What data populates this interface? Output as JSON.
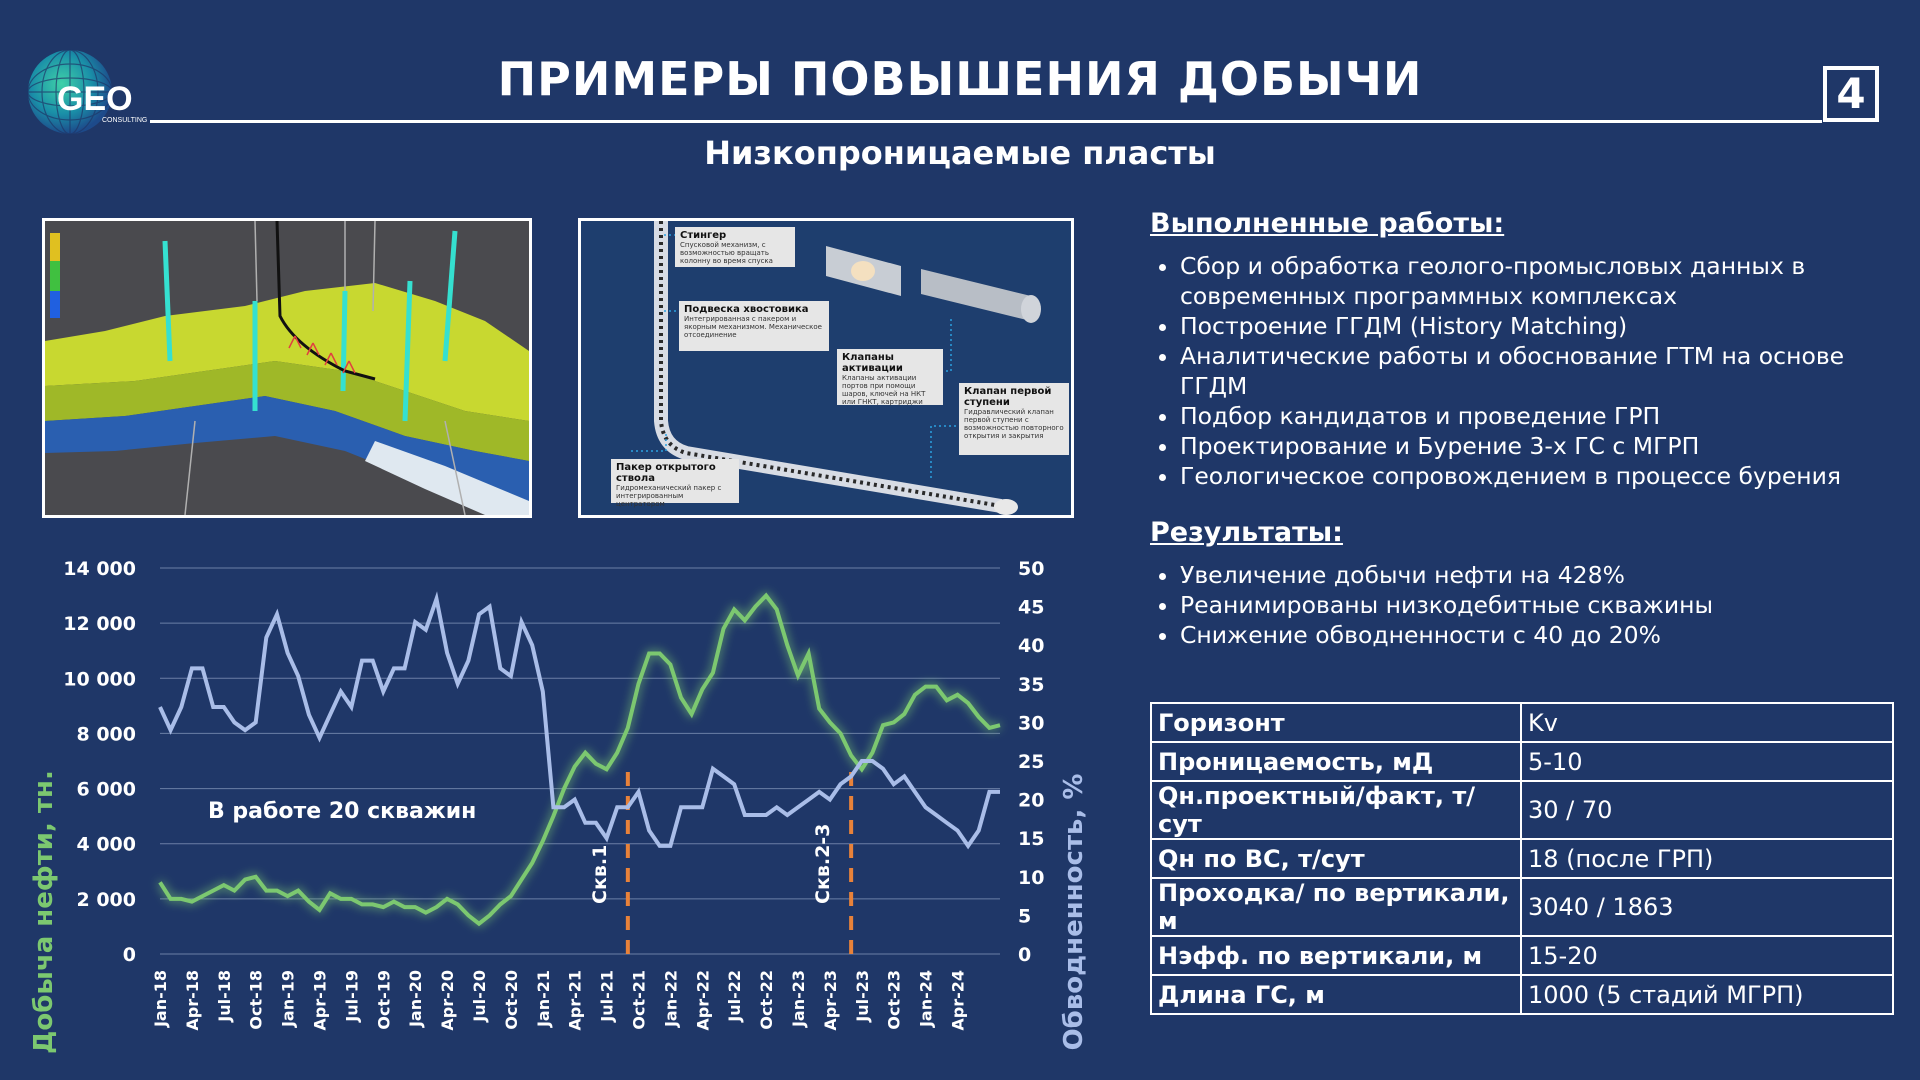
{
  "logo": {
    "text": "GEO",
    "subtext": "CONSULTING"
  },
  "header": {
    "title": "ПРИМЕРЫ ПОВЫШЕНИЯ ДОБЫЧИ",
    "page_number": "4",
    "subtitle": "Низкопроницаемые пласты"
  },
  "tool_diagram": {
    "callouts": [
      {
        "title": "Стингер",
        "text": "Спусковой механизм, с возможностью вращать колонну во время спуска"
      },
      {
        "title": "Подвеска хвостовика",
        "text": "Интегрированная с пакером и якорным механизмом. Механическое отсоединение"
      },
      {
        "title": "Клапаны активации",
        "text": "Клапаны активации портов при помощи шаров, ключей на НКТ или ГНКТ, картриджи"
      },
      {
        "title": "Клапан первой ступени",
        "text": "Гидравлический клапан первой ступени с возможностью повторного открытия и закрытия"
      },
      {
        "title": "Пакер открытого ствола",
        "text": "Гидромеханический пакер с интегрированным центратором"
      }
    ]
  },
  "works": {
    "heading": "Выполненные работы:",
    "items": [
      "Сбор и обработка геолого-промысловых данных в современных программных комплексах",
      "Построение ГГДМ (History Matching)",
      "Аналитические работы и обоснование ГТМ на основе ГГДМ",
      "Подбор кандидатов и проведение ГРП",
      "Проектирование и Бурение 3-х ГС с МГРП",
      "Геологическое сопровождением в процессе бурения"
    ]
  },
  "results": {
    "heading": "Результаты:",
    "items": [
      "Увеличение добычи нефти на 428%",
      "Реанимированы низкодебитные скважины",
      "Снижение обводненности с 40 до 20%"
    ]
  },
  "params": [
    {
      "key": "Горизонт",
      "value": "Kv"
    },
    {
      "key": "Проницаемость, мД",
      "value": "5-10"
    },
    {
      "key": "Qн.проектный/факт, т/сут",
      "value": "30 / 70"
    },
    {
      "key": "Qн по ВС, т/сут",
      "value": "18 (после ГРП)"
    },
    {
      "key": "Проходка/ по вертикали, м",
      "value": "3040 / 1863"
    },
    {
      "key": "Нэфф. по вертикали, м",
      "value": "15-20"
    },
    {
      "key": "Длина ГС, м",
      "value": "1000 (5 стадий МГРП)"
    }
  ],
  "chart_data": {
    "type": "line",
    "ylabel": "Добыча нефти, тн.",
    "y2label": "Обводненность, %",
    "ylim": [
      0,
      14000
    ],
    "y2lim": [
      0,
      50
    ],
    "yticks": [
      "0",
      "2 000",
      "4 000",
      "6 000",
      "8 000",
      "10 000",
      "12 000",
      "14 000"
    ],
    "y2ticks": [
      "0",
      "5",
      "10",
      "15",
      "20",
      "25",
      "30",
      "35",
      "40",
      "45",
      "50"
    ],
    "grid": true,
    "x_tick_labels": [
      "Jan-18",
      "Apr-18",
      "Jul-18",
      "Oct-18",
      "Jan-19",
      "Apr-19",
      "Jul-19",
      "Oct-19",
      "Jan-20",
      "Apr-20",
      "Jul-20",
      "Oct-20",
      "Jan-21",
      "Apr-21",
      "Jul-21",
      "Oct-21",
      "Jan-22",
      "Apr-22",
      "Jul-22",
      "Oct-22",
      "Jan-23",
      "Apr-23",
      "Jul-23",
      "Oct-23",
      "Jan-24",
      "Apr-24"
    ],
    "annotation": "В работе 20 скважин",
    "markers": [
      {
        "label": "Скв.1",
        "month": "Sep-21"
      },
      {
        "label": "Скв.2-3",
        "month": "Jun-23"
      }
    ],
    "series": [
      {
        "axis": "left",
        "color": "#7cc870",
        "values": [
          2600,
          2000,
          2000,
          1900,
          2100,
          2300,
          2500,
          2300,
          2700,
          2800,
          2300,
          2300,
          2100,
          2300,
          1900,
          1600,
          2200,
          2000,
          2000,
          1800,
          1800,
          1700,
          1900,
          1700,
          1700,
          1500,
          1700,
          2000,
          1800,
          1400,
          1100,
          1400,
          1800,
          2100,
          2700,
          3300,
          4100,
          5000,
          6000,
          6800,
          7300,
          6900,
          6700,
          7300,
          8200,
          9800,
          10900,
          10900,
          10500,
          9300,
          8700,
          9600,
          10200,
          11800,
          12500,
          12100,
          12600,
          13000,
          12500,
          11200,
          10100,
          10900,
          8900,
          8400,
          8000,
          7200,
          6700,
          7300,
          8300,
          8400,
          8700,
          9400,
          9700,
          9700,
          9200,
          9400,
          9100,
          8600,
          8200,
          8300
        ]
      },
      {
        "axis": "right",
        "color": "#a9bde8",
        "values": [
          32,
          29,
          32,
          37,
          37,
          32,
          32,
          30,
          29,
          30,
          41,
          44,
          39,
          36,
          31,
          28,
          31,
          34,
          32,
          38,
          38,
          34,
          37,
          37,
          43,
          42,
          46,
          39,
          35,
          38,
          44,
          45,
          37,
          36,
          43,
          40,
          34,
          19,
          19,
          20,
          17,
          17,
          15,
          19,
          19,
          21,
          16,
          14,
          14,
          19,
          19,
          19,
          24,
          23,
          22,
          18,
          18,
          18,
          19,
          18,
          19,
          20,
          21,
          20,
          22,
          23,
          25,
          25,
          24,
          22,
          23,
          21,
          19,
          18,
          17,
          16,
          14,
          16,
          21,
          21
        ]
      }
    ]
  }
}
